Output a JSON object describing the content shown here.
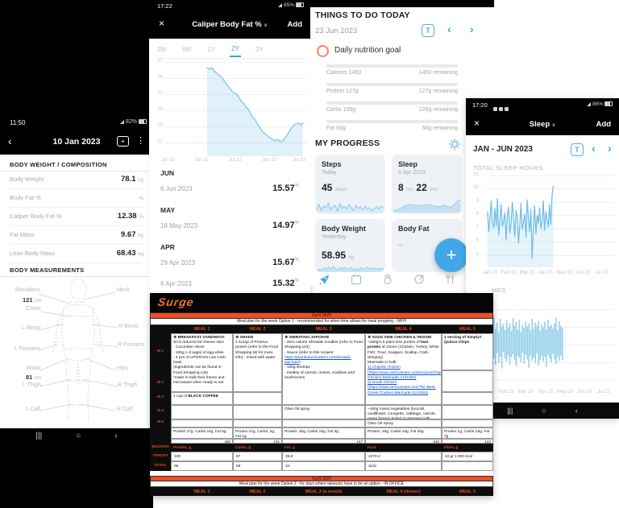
{
  "android_nav": {
    "recents": "|||",
    "home": "○",
    "back": "‹"
  },
  "colors": {
    "accent_blue": "#3ea3e2",
    "chart_blue": "#85c8ec",
    "meal_orange": "#ee4f27",
    "logo_orange": "#f4731e",
    "goal_coral": "#ef8a66",
    "link_blue": "#1155cc",
    "fab_blue": "#41a7e8"
  },
  "measure_app": {
    "status_time": "11:50",
    "battery": "82%",
    "back": "‹",
    "title": "10 Jan 2023",
    "kebab": "⋮",
    "chat_plus": "+",
    "section1": "BODY WEIGHT / COMPOSITION",
    "rows": [
      {
        "label": "Body Weight",
        "value": "78.1",
        "unit": "kg"
      },
      {
        "label": "Body Fat %",
        "value": "",
        "unit": "%"
      },
      {
        "label": "Caliper Body Fat %",
        "value": "12.38",
        "unit": "%"
      },
      {
        "label": "Fat Mass",
        "value": "9.67",
        "unit": "kg"
      },
      {
        "label": "Lean Body Mass",
        "value": "68.43",
        "unit": "kg"
      }
    ],
    "section2": "BODY MEASUREMENTS",
    "labels": {
      "shoulders": "Shoulders",
      "shoulders_val": "121",
      "shoulders_unit": "cm",
      "chest": "Chest",
      "neck": "Neck",
      "l_bicep": "L Bicep",
      "r_bicep": "R Bicep",
      "l_forearm": "L Forearm",
      "r_forearm": "R Forearm",
      "waist": "Waist",
      "waist_val": "81",
      "waist_unit": "cm",
      "hips": "Hips",
      "l_thigh": "L Thigh",
      "r_thigh": "R Thigh",
      "l_calf": "L Calf",
      "r_calf": "R Calf"
    }
  },
  "caliper_app": {
    "status_time": "17:22",
    "battery": "85%",
    "close": "×",
    "title": "Caliper Body Fat %",
    "caret": "∨",
    "add_label": "Add",
    "tabs": [
      "3M",
      "6M",
      "1Y",
      "2Y",
      "3Y"
    ],
    "active_tab": "2Y",
    "unit": "%",
    "groups": [
      {
        "header": "JUN",
        "rows": [
          {
            "date": "6 Jun 2023",
            "value": "15.57"
          }
        ]
      },
      {
        "header": "MAY",
        "rows": [
          {
            "date": "18 May 2023",
            "value": "14.97"
          }
        ]
      },
      {
        "header": "APR",
        "rows": [
          {
            "date": "29 Apr 2023",
            "value": "15.67"
          },
          {
            "date": "6 Apr 2023",
            "value": "15.32"
          }
        ]
      }
    ]
  },
  "todo_app": {
    "title": "THINGS TO DO TODAY",
    "date": "23 Jun 2023",
    "t_btn": "T",
    "prev": "‹",
    "next": "›",
    "goal": "Daily nutrition goal",
    "nutrition": [
      {
        "left": "Calories 1450",
        "right": "1450 remaining"
      },
      {
        "left": "Protein 127g",
        "right": "127g remaining"
      },
      {
        "left": "Carbs 109g",
        "right": "109g remaining"
      },
      {
        "left": "Fat 56g",
        "right": "56g remaining"
      }
    ],
    "progress": "MY PROGRESS",
    "cards": {
      "steps": {
        "title": "Steps",
        "subtitle": "Today",
        "value": "45",
        "unit": "steps"
      },
      "sleep": {
        "title": "Sleep",
        "subtitle": "8 Apr 2023",
        "v1": "8",
        "u1": "hrs",
        "v2": "22",
        "u2": "min"
      },
      "weight": {
        "title": "Body Weight",
        "subtitle": "Yesterday",
        "value": "58.95",
        "unit": "kg"
      },
      "fat": {
        "title": "Body Fat",
        "dots": "..."
      }
    },
    "fab": "+"
  },
  "sleep_app": {
    "status_time": "17:20",
    "battery": "86%",
    "close": "×",
    "title": "Sleep",
    "caret": "∨",
    "add_label": "Add",
    "period": "JAN - JUN 2023",
    "t_btn": "T",
    "prev": "‹",
    "next": "›",
    "chart1_title": "TOTAL SLEEP HOURS",
    "times_fragment": "MES"
  },
  "meal_plan": {
    "logo": "Surge",
    "section1": {
      "month": "April 2023",
      "title": "Meal plan for the week Option 1 - recommended for when time allows for meal prepping - WFH",
      "headers": [
        "MEAL 1",
        "MEAL 2",
        "MEAL 3",
        "MEAL 4",
        "MEAL 5"
      ]
    },
    "row_labels": [
      "M 1",
      "M 2",
      "M 3",
      "M 4",
      "M 5"
    ],
    "meal1": {
      "head": "★ BREAKFAST SANDWICH",
      "body": "- SCS reduced fat cheese slice\n- Cucumber slices\n- 100g (~3 eggs) of egg white\n- 2 pcs of UPGRAIN Low Carb toast",
      "note": "(Ingredients can be found in Food Shopping List)\n*make in bulk then freeze and microwave when ready to eat"
    },
    "meal1_row3_pre": "1 cup of ",
    "meal1_row3_bold": "BLACK COFFEE",
    "meal2": {
      "head": "★ SHAKE",
      "body": "1 scoop of Proteus protein (refer to the Food Shopping list for more info) - mixed with water"
    },
    "meal3": {
      "head": "★ SHIRATAKI JAPCHAE",
      "body1": "- Zero calorie Shirataki noodles (refer to Food Shopping List)\n- Sauce (refer to this recipes: ",
      "link": "https://plantbasedmatters.net/shirataki-japchae/",
      "body2": ")\n- 100g shrimps\n- medley of carrots, onions, scallions and mushrooms"
    },
    "meal3_row4": "Olive Oil spray",
    "meal4": {
      "head": "★ SOUS VIDE CHICKEN & VEGGIE",
      "body1": "~150g/1.5 palm-size portion of ",
      "bold": "lean protein",
      "body2": " of choice (Chicken, Turkey, White Fish: Trout, Snapper, Scallop, Crab, Stingray)",
      "marinade": "Marinade in bulk:",
      "link1": "1) Chipotle chicken (https://www.seriouseats.com/recipes/Chipotle-Chicken-Marinade-1141583)",
      "link2": "2) Greek chicken (https://www.seriouseats.com/The-Best-Greek-Chicken-Marinade-1141593)"
    },
    "meal4_row4": "~150g mixed vegetables (brocolli, cauliflower, courgette, cabbage, carrots, green beans) boiled or steamed with lemon juice",
    "meal4_row5": "Olive Oil Spray",
    "meal5": {
      "head": "1 serving of Simply7 Quinoa Chips"
    },
    "macro_row": [
      "Protein 27g, Carbs 22g, Fat 6g",
      "Protein 21g, Carbs: 2g, Fat 1g",
      "Protein: 20g, Carbs 15g, Fat 3g",
      "Protein: 49g, Carbs 16g, Fat 20g",
      "Protein 1g, Carbs 19g, Fat 7g"
    ],
    "kcal_row": [
      "250",
      "101",
      "167",
      "640",
      "143"
    ],
    "macros_label": "MACROS",
    "target_label": "TARGET",
    "total_label": "TOTAL",
    "macros_header": [
      "Protein, g",
      "Carbs, g",
      "Fat, g",
      "Kcal",
      "Fibre, g"
    ],
    "target_row": [
      "100",
      "87",
      "35.8",
      "1070.2",
      "10 g/ 1.000 kcal"
    ],
    "total_row": [
      "98",
      "59",
      "34",
      "1101",
      ""
    ],
    "section2": {
      "month": "April 2023",
      "title": "Meal plan for the week Option 2 - for days where takeouts have to be an option - IN OFFICE",
      "headers": [
        "MEAL 1",
        "MEAL 2",
        "MEAL 3 (a snack)",
        "MEAL 4 (dinner)",
        "MEAL 5"
      ]
    }
  },
  "chart_data": [
    {
      "id": "caliper_2y",
      "type": "line",
      "title": "Caliper Body Fat % (2Y)",
      "ylabel": "%",
      "ylim": [
        12,
        27
      ],
      "yticks": [
        "27",
        "24",
        "21",
        "18",
        "15",
        "12"
      ],
      "xticks": [
        "Jul 21",
        "Jan 22",
        "Jul 22",
        "Jan 23",
        "Jul 23"
      ],
      "vmin": 12,
      "vmax": 27,
      "pad_t": 7,
      "pad_b": 17,
      "x0_frac": 0.295,
      "x1_frac": 0.97,
      "color": "#85c8ec",
      "fill": "rgba(168,214,242,0.35)",
      "sw": 1.4,
      "values": [
        25.9,
        25.7,
        25.9,
        25.4,
        25.0,
        24.6,
        24.3,
        23.8,
        23.2,
        22.6,
        22.1,
        21.5,
        21.2,
        21.0,
        20.4,
        19.7,
        19.3,
        18.6,
        18.3,
        17.5,
        16.7,
        16.3,
        15.5,
        14.9,
        14.2,
        13.8,
        13.4,
        13.1,
        12.8,
        12.5,
        12.3,
        12.6,
        12.2,
        12.3,
        12.7,
        13.3,
        14.0,
        14.7,
        15.2,
        15.5,
        15.6,
        15.3,
        15.6
      ]
    },
    {
      "id": "sleep_hours",
      "type": "line",
      "title": "TOTAL SLEEP HOURS",
      "ylim": [
        4,
        11
      ],
      "yticks": [
        "11",
        "10",
        "9",
        "8",
        "7",
        "6",
        "5"
      ],
      "xticks": [
        "Jan 23",
        "Feb 23",
        "Mar 23",
        "Apr 23",
        "May 23",
        "Jun 23",
        "Jul 23"
      ],
      "vmin": 4,
      "vmax": 11,
      "pad_t": 4,
      "pad_b": 8,
      "x0_frac": 0.03,
      "x1_frac": 0.53,
      "color": "#6bbde8",
      "fill": "rgba(168,214,242,0.30)",
      "sw": 1.2,
      "values": [
        8.2,
        6.5,
        7.8,
        9.1,
        7.2,
        6.8,
        8.5,
        7.0,
        9.3,
        6.2,
        7.5,
        8.8,
        6.9,
        7.4,
        8.1,
        5.8,
        7.9,
        8.6,
        6.4,
        7.2,
        9.0,
        7.6,
        6.1,
        8.3,
        7.8,
        5.5,
        7.1,
        8.9,
        6.7,
        7.3,
        8.0,
        6.0,
        9.2,
        7.7,
        6.5,
        8.4,
        4.2,
        7.0,
        8.7,
        6.3,
        7.9,
        7.2,
        8.5,
        6.8,
        7.4,
        9.1,
        6.6,
        8.2,
        7.5,
        6.9,
        8.8,
        7.1,
        9.6,
        10.4
      ]
    },
    {
      "id": "sleep_times",
      "type": "rangebar",
      "title": "SLEEP TIMES",
      "xticks": [
        "Feb 23",
        "Mar 23",
        "Apr 23",
        "May 23",
        "Jun 23",
        "Jul 23"
      ],
      "x0_frac": 0.03,
      "x1_frac": 0.6,
      "color": "#8fcdeb",
      "sw": 1.5,
      "bars": [
        [
          0.3,
          0.7
        ],
        [
          0.22,
          0.68
        ],
        [
          0.35,
          0.75
        ],
        [
          0.28,
          0.66
        ],
        [
          0.18,
          0.72
        ],
        [
          0.33,
          0.8
        ],
        [
          0.25,
          0.65
        ],
        [
          0.38,
          0.78
        ],
        [
          0.2,
          0.7
        ],
        [
          0.3,
          0.85
        ],
        [
          0.27,
          0.63
        ],
        [
          0.35,
          0.72
        ],
        [
          0.22,
          0.76
        ],
        [
          0.31,
          0.68
        ],
        [
          0.26,
          0.8
        ],
        [
          0.36,
          0.7
        ],
        [
          0.19,
          0.66
        ],
        [
          0.29,
          0.74
        ],
        [
          0.24,
          0.82
        ],
        [
          0.34,
          0.69
        ],
        [
          0.21,
          0.71
        ],
        [
          0.37,
          0.77
        ],
        [
          0.28,
          0.64
        ],
        [
          0.32,
          0.79
        ],
        [
          0.23,
          0.67
        ],
        [
          0.3,
          0.73
        ],
        [
          0.26,
          0.84
        ],
        [
          0.35,
          0.68
        ],
        [
          0.2,
          0.75
        ],
        [
          0.33,
          0.71
        ],
        [
          0.25,
          0.78
        ],
        [
          0.29,
          0.65
        ],
        [
          0.22,
          0.81
        ],
        [
          0.36,
          0.74
        ],
        [
          0.27,
          0.69
        ],
        [
          0.31,
          0.76
        ],
        [
          0.24,
          0.7
        ],
        [
          0.34,
          0.83
        ],
        [
          0.21,
          0.67
        ],
        [
          0.3,
          0.72
        ],
        [
          0.28,
          0.77
        ],
        [
          0.33,
          0.66
        ],
        [
          0.26,
          0.73
        ],
        [
          0.19,
          0.79
        ],
        [
          0.35,
          0.7
        ],
        [
          0.23,
          0.75
        ],
        [
          0.29,
          0.68
        ],
        [
          0.32,
          0.74
        ]
      ]
    },
    {
      "id": "steps_spark",
      "type": "line",
      "title": "Steps sparkline",
      "color": "#7fc8ef",
      "sw": 1,
      "fill": "rgba(168,214,242,0.25)",
      "values": [
        0.4,
        0.7,
        0.3,
        0.6,
        0.5,
        0.8,
        0.35,
        0.55,
        0.65,
        0.3,
        0.75,
        0.45,
        0.6,
        0.4,
        0.7,
        0.5,
        0.3,
        0.65,
        0.45,
        0.55,
        0.35,
        0.6,
        0.4,
        0.5,
        0.3,
        0.45,
        0.55,
        0.4,
        0.6,
        0.5
      ]
    },
    {
      "id": "sleep_spark",
      "type": "line",
      "title": "Sleep sparkline",
      "color": "#8fd0f0",
      "sw": 1,
      "fill": "rgba(150,205,240,0.45)",
      "values": [
        0.15,
        0.2,
        0.3,
        0.45,
        0.55,
        0.6,
        0.58,
        0.52,
        0.5,
        0.55,
        0.6,
        0.57,
        0.5,
        0.44,
        0.47,
        0.55,
        0.5,
        0.42,
        0.55,
        0.8,
        0.95
      ]
    },
    {
      "id": "weight_spark",
      "type": "line",
      "title": "Body weight sparkline",
      "color": "#8fd0f0",
      "sw": 1,
      "fill": "rgba(150,205,240,0.4)",
      "values": [
        0.3,
        0.5,
        0.4,
        0.6,
        0.45,
        0.65,
        0.5,
        0.7,
        0.55,
        0.4,
        0.6,
        0.5,
        0.65,
        0.45,
        0.55,
        0.6,
        0.4,
        0.5,
        0.45,
        0.6,
        0.5,
        0.55,
        0.65,
        0.5,
        0.6,
        0.55,
        0.45,
        0.6,
        0.5,
        0.55
      ]
    }
  ]
}
